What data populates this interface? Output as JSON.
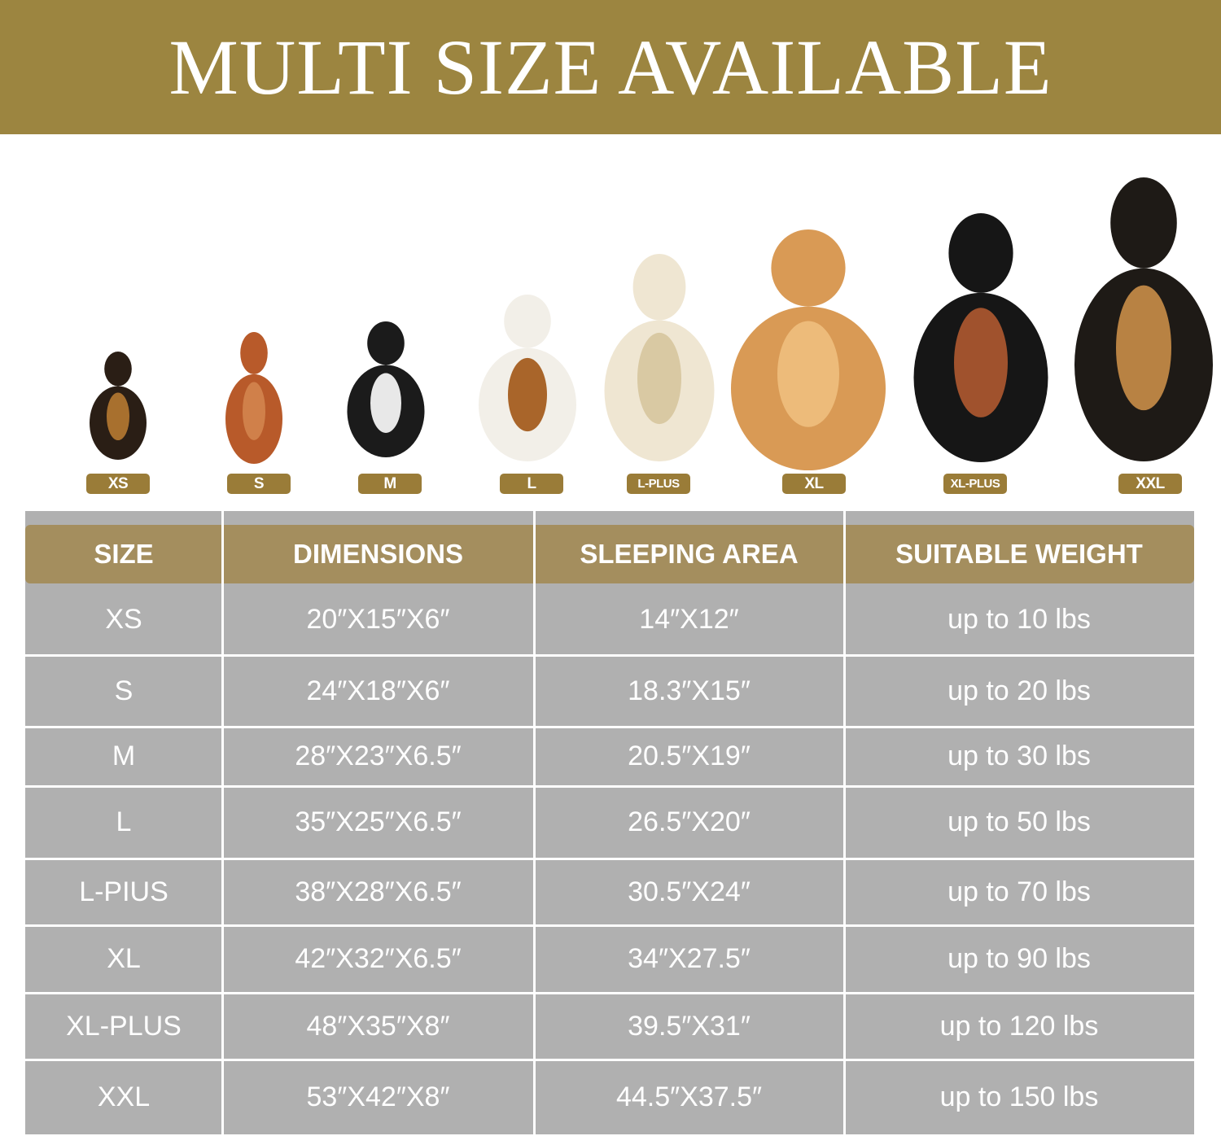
{
  "banner": {
    "title": "MULTI SIZE AVAILABLE",
    "color": "#9c8540"
  },
  "dogs": [
    {
      "badge": "XS",
      "breed_icon": "dachshund-icon"
    },
    {
      "badge": "S",
      "breed_icon": "poodle-icon"
    },
    {
      "badge": "M",
      "breed_icon": "french-bulldog-icon"
    },
    {
      "badge": "L",
      "breed_icon": "beagle-icon"
    },
    {
      "badge": "L-PLUS",
      "breed_icon": "labrador-icon"
    },
    {
      "badge": "XL",
      "breed_icon": "golden-retriever-icon"
    },
    {
      "badge": "XL-PLUS",
      "breed_icon": "doberman-icon"
    },
    {
      "badge": "XXL",
      "breed_icon": "german-shepherd-icon"
    }
  ],
  "table": {
    "headers": [
      "SIZE",
      "DIMENSIONS",
      "SLEEPING AREA",
      "SUITABLE WEIGHT"
    ],
    "rows": [
      [
        "XS",
        "20″X15″X6″",
        "14″X12″",
        "up to 10 lbs"
      ],
      [
        "S",
        "24″X18″X6″",
        "18.3″X15″",
        "up to 20 lbs"
      ],
      [
        "M",
        "28″X23″X6.5″",
        "20.5″X19″",
        "up to 30 lbs"
      ],
      [
        "L",
        "35″X25″X6.5″",
        "26.5″X20″",
        "up to 50 lbs"
      ],
      [
        "L-PIUS",
        "38″X28″X6.5″",
        "30.5″X24″",
        "up to 70 lbs"
      ],
      [
        "XL",
        "42″X32″X6.5″",
        "34″X27.5″",
        "up to 90 lbs"
      ],
      [
        "XL-PLUS",
        "48″X35″X8″",
        "39.5″X31″",
        "up to 120 lbs"
      ],
      [
        "XXL",
        "53″X42″X8″",
        "44.5″X37.5″",
        "up to 150 lbs"
      ]
    ],
    "header_color": "#a48e5e",
    "body_color": "#b0b0b0"
  }
}
